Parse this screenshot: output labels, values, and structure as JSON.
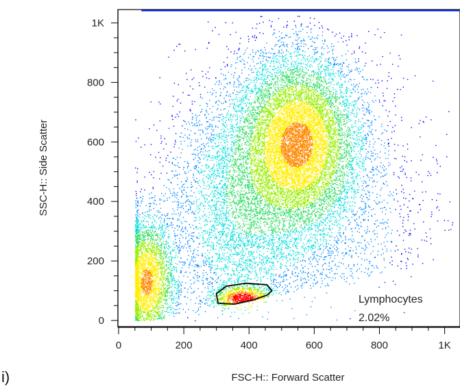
{
  "panel_label": "i)",
  "chart_data": {
    "type": "scatter",
    "subtype": "flow-cytometry density plot",
    "xlabel": "FSC-H:: Forward Scatter",
    "ylabel": "SSC-H:: Side Scatter",
    "xlim": [
      0,
      1024
    ],
    "ylim": [
      0,
      1024
    ],
    "x_ticks": [
      {
        "value": 0,
        "label": "0"
      },
      {
        "value": 200,
        "label": "200"
      },
      {
        "value": 400,
        "label": "400"
      },
      {
        "value": 600,
        "label": "600"
      },
      {
        "value": 800,
        "label": "800"
      },
      {
        "value": 1000,
        "label": "1K"
      }
    ],
    "y_ticks": [
      {
        "value": 0,
        "label": "0"
      },
      {
        "value": 200,
        "label": "200"
      },
      {
        "value": 400,
        "label": "400"
      },
      {
        "value": 600,
        "label": "600"
      },
      {
        "value": 800,
        "label": "800"
      },
      {
        "value": 1000,
        "label": "1K"
      }
    ],
    "populations": [
      {
        "cx": 550,
        "cy": 600,
        "sx": 95,
        "sy": 150,
        "weight": 0.48
      },
      {
        "cx": 360,
        "cy": 380,
        "sx": 110,
        "sy": 210,
        "weight": 0.18
      },
      {
        "cx": 85,
        "cy": 130,
        "sx": 45,
        "sy": 110,
        "weight": 0.17
      },
      {
        "cx": 380,
        "cy": 75,
        "sx": 45,
        "sy": 22,
        "weight": 0.05
      },
      {
        "cx": 620,
        "cy": 300,
        "sx": 190,
        "sy": 260,
        "weight": 0.12
      }
    ],
    "gate": {
      "name": "Lymphocytes",
      "percent": "2.02%",
      "polygon": [
        [
          305,
          58
        ],
        [
          300,
          90
        ],
        [
          330,
          115
        ],
        [
          390,
          125
        ],
        [
          455,
          120
        ],
        [
          470,
          100
        ],
        [
          455,
          85
        ],
        [
          410,
          68
        ],
        [
          355,
          55
        ]
      ]
    },
    "colormap": [
      "#0000ff",
      "#0088ff",
      "#00dddd",
      "#33dd66",
      "#99ee00",
      "#ffee00",
      "#ff8800",
      "#ff0000"
    ],
    "grid": false,
    "legend": "none"
  }
}
